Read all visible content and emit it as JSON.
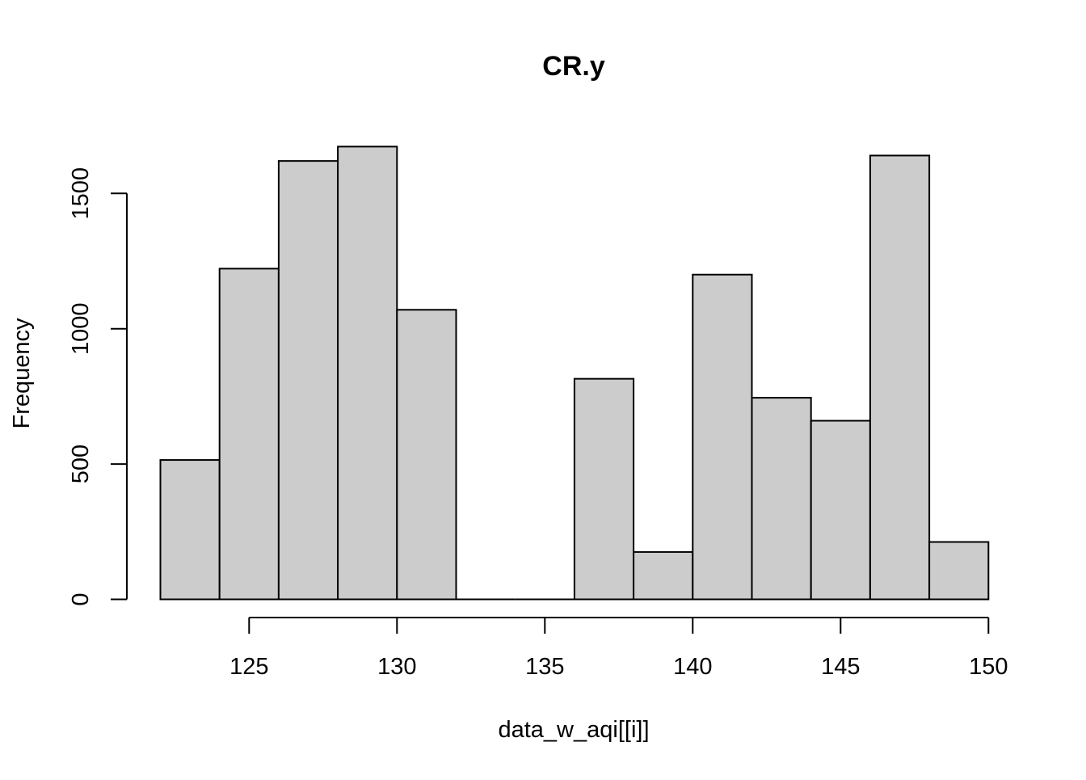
{
  "chart_data": {
    "type": "bar",
    "subtype": "histogram",
    "title": "CR.y",
    "xlabel": "data_w_aqi[[i]]",
    "ylabel": "Frequency",
    "bin_edges": [
      122,
      124,
      126,
      128,
      130,
      132,
      134,
      136,
      138,
      140,
      142,
      144,
      146,
      148,
      150
    ],
    "values": [
      515,
      1222,
      1620,
      1673,
      1070,
      0,
      0,
      815,
      175,
      1200,
      745,
      660,
      1640,
      212
    ],
    "xlim": [
      122,
      150
    ],
    "ylim": [
      0,
      1700
    ],
    "x_ticks": [
      125,
      130,
      135,
      140,
      145,
      150
    ],
    "y_ticks": [
      0,
      500,
      1000,
      1500
    ],
    "x_tick_labels": [
      "125",
      "130",
      "135",
      "140",
      "145",
      "150"
    ],
    "y_tick_labels": [
      "0",
      "500",
      "1000",
      "1500"
    ],
    "bar_fill": "#cccccc",
    "bar_stroke": "#000000",
    "grid": false,
    "legend": "none"
  }
}
